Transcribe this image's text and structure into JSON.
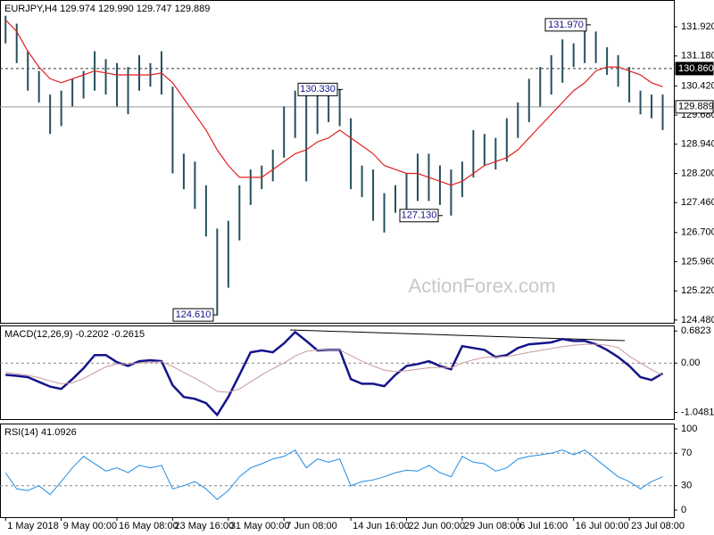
{
  "chart_data": [
    {
      "type": "ohlc",
      "title": "EURJPY,H4  129.974 129.990 129.747 129.889",
      "watermark": "ActionForex.com",
      "xlim": [
        -0.5,
        60
      ],
      "ylim": [
        124.41,
        132.6
      ],
      "bar_color": "#24505e",
      "yticks": [
        {
          "value": 131.92,
          "label": "131.920"
        },
        {
          "value": 131.18,
          "label": "131.180"
        },
        {
          "value": 130.42,
          "label": "130.420"
        },
        {
          "value": 129.68,
          "label": "129.680"
        },
        {
          "value": 128.94,
          "label": "128.940"
        },
        {
          "value": 128.2,
          "label": "128.200"
        },
        {
          "value": 127.46,
          "label": "127.460"
        },
        {
          "value": 126.7,
          "label": "126.700"
        },
        {
          "value": 125.96,
          "label": "125.960"
        },
        {
          "value": 125.22,
          "label": "125.220"
        },
        {
          "value": 124.48,
          "label": "124.480"
        }
      ],
      "high": [
        132.2,
        132.0,
        131.3,
        130.8,
        130.2,
        130.3,
        130.6,
        130.8,
        131.3,
        131.1,
        131.0,
        130.9,
        131.2,
        131.0,
        131.3,
        130.4,
        128.7,
        128.5,
        127.9,
        126.8,
        127.0,
        127.9,
        128.3,
        128.4,
        128.8,
        129.9,
        130.3,
        130.2,
        130.3,
        130.3,
        130.33,
        129.6,
        128.4,
        128.3,
        127.7,
        127.9,
        128.2,
        128.7,
        128.7,
        128.4,
        128.3,
        128.5,
        129.3,
        129.2,
        129.1,
        129.6,
        130.0,
        130.6,
        130.9,
        131.2,
        131.6,
        131.5,
        131.97,
        131.8,
        131.4,
        131.2,
        130.9,
        130.3,
        130.2,
        130.2
      ],
      "low": [
        131.5,
        131.0,
        130.3,
        130.0,
        129.2,
        129.4,
        129.9,
        130.1,
        130.3,
        130.2,
        129.9,
        129.7,
        130.3,
        130.4,
        130.2,
        128.2,
        127.8,
        127.3,
        126.6,
        124.61,
        125.3,
        126.5,
        127.4,
        127.8,
        128.0,
        128.6,
        129.1,
        128.0,
        129.2,
        129.5,
        129.4,
        127.8,
        127.6,
        127.0,
        126.7,
        127.2,
        127.3,
        127.5,
        127.5,
        127.4,
        127.13,
        127.6,
        128.1,
        128.4,
        128.3,
        128.5,
        129.1,
        129.5,
        129.9,
        130.2,
        130.5,
        130.9,
        131.0,
        131.0,
        130.7,
        130.4,
        130.0,
        129.7,
        129.6,
        129.3
      ],
      "ma": {
        "color": "#e02020",
        "values": [
          132.1,
          131.8,
          131.3,
          130.9,
          130.6,
          130.5,
          130.6,
          130.7,
          130.8,
          130.75,
          130.7,
          130.7,
          130.7,
          130.7,
          130.75,
          130.5,
          130.1,
          129.7,
          129.3,
          128.8,
          128.4,
          128.1,
          128.1,
          128.1,
          128.3,
          128.5,
          128.7,
          128.8,
          129.0,
          129.1,
          129.3,
          129.1,
          128.9,
          128.7,
          128.4,
          128.3,
          128.2,
          128.2,
          128.1,
          128.0,
          127.9,
          128.0,
          128.2,
          128.4,
          128.5,
          128.6,
          128.8,
          129.1,
          129.4,
          129.7,
          130.0,
          130.3,
          130.5,
          130.8,
          130.9,
          130.9,
          130.8,
          130.7,
          130.5,
          130.4
        ]
      },
      "levels": [
        {
          "value": 130.86,
          "label": "130.860",
          "style": "dashed"
        },
        {
          "value": 129.889,
          "label": "129.889",
          "style": "solid"
        }
      ],
      "annotations": [
        {
          "value": 131.97,
          "label": "131.970"
        },
        {
          "value": 130.33,
          "label": "130.330"
        },
        {
          "value": 127.13,
          "label": "127.130"
        },
        {
          "value": 124.61,
          "label": "124.610"
        }
      ]
    },
    {
      "type": "line",
      "title": "MACD(12,26,9) -0.2202 -0.2615",
      "xlim": [
        -0.5,
        60
      ],
      "ylim": [
        -1.19,
        0.8
      ],
      "yticks": [
        0.6823,
        {
          "value": 0,
          "label": "0.00"
        },
        -1.0481
      ],
      "levels": [
        0
      ],
      "series": [
        {
          "color": "#14148c",
          "values": [
            -0.25,
            -0.27,
            -0.3,
            -0.4,
            -0.5,
            -0.55,
            -0.34,
            -0.11,
            0.17,
            0.17,
            0.02,
            -0.06,
            0.04,
            0.06,
            0.04,
            -0.47,
            -0.72,
            -0.76,
            -0.85,
            -1.1,
            -0.72,
            -0.25,
            0.23,
            0.27,
            0.23,
            0.42,
            0.66,
            0.47,
            0.27,
            0.28,
            0.28,
            -0.34,
            -0.44,
            -0.44,
            -0.49,
            -0.25,
            -0.06,
            -0.02,
            0.04,
            -0.06,
            -0.13,
            0.36,
            0.32,
            0.28,
            0.13,
            0.17,
            0.32,
            0.4,
            0.42,
            0.44,
            0.51,
            0.47,
            0.47,
            0.4,
            0.28,
            0.13,
            -0.06,
            -0.3,
            -0.36,
            -0.22
          ]
        },
        {
          "color": "#c89a9a",
          "values": [
            -0.2,
            -0.23,
            -0.26,
            -0.31,
            -0.38,
            -0.44,
            -0.42,
            -0.33,
            -0.2,
            -0.08,
            -0.02,
            -0.02,
            0,
            0.02,
            0.03,
            -0.07,
            -0.2,
            -0.32,
            -0.45,
            -0.6,
            -0.62,
            -0.55,
            -0.4,
            -0.25,
            -0.12,
            0,
            0.15,
            0.25,
            0.28,
            0.28,
            0.28,
            0.16,
            0.04,
            -0.06,
            -0.15,
            -0.18,
            -0.16,
            -0.13,
            -0.1,
            -0.09,
            -0.1,
            0,
            0.07,
            0.12,
            0.13,
            0.14,
            0.18,
            0.23,
            0.27,
            0.31,
            0.35,
            0.38,
            0.4,
            0.4,
            0.38,
            0.33,
            0.15,
            0,
            -0.14,
            -0.26
          ]
        }
      ]
    },
    {
      "type": "line",
      "title": "RSI(14) 41.0926",
      "xlim": [
        -0.5,
        60
      ],
      "ylim": [
        -8.8,
        106.6
      ],
      "yticks": [
        100,
        70,
        30,
        0
      ],
      "levels": [
        70,
        30
      ],
      "series": [
        {
          "color": "#1e8ce6",
          "values": [
            46,
            26,
            24,
            30,
            19,
            35,
            52,
            66,
            57,
            48,
            52,
            46,
            55,
            52,
            55,
            26,
            30,
            35,
            26,
            13,
            24,
            41,
            52,
            57,
            63,
            66,
            74,
            52,
            63,
            59,
            63,
            30,
            35,
            37,
            41,
            46,
            49,
            48,
            55,
            46,
            41,
            66,
            59,
            57,
            48,
            52,
            63,
            66,
            68,
            70,
            74,
            68,
            74,
            63,
            52,
            41,
            35,
            26,
            35,
            41
          ]
        }
      ],
      "xticks": [
        {
          "value": 0,
          "label": "1 May 2018"
        },
        {
          "value": 5,
          "label": "9 May 00:00"
        },
        {
          "value": 10,
          "label": "16 May 08:00"
        },
        {
          "value": 15,
          "label": "23 May 16:00"
        },
        {
          "value": 20,
          "label": "31 May 00:00"
        },
        {
          "value": 25,
          "label": "7 Jun 08:00"
        },
        {
          "value": 31,
          "label": "14 Jun 16:00"
        },
        {
          "value": 36,
          "label": "22 Jun 00:00"
        },
        {
          "value": 41,
          "label": "29 Jun 08:00"
        },
        {
          "value": 46,
          "label": "6 Jul 16:00"
        },
        {
          "value": 51,
          "label": "16 Jul 00:00"
        },
        {
          "value": 56,
          "label": "23 Jul 08:00"
        }
      ]
    }
  ]
}
